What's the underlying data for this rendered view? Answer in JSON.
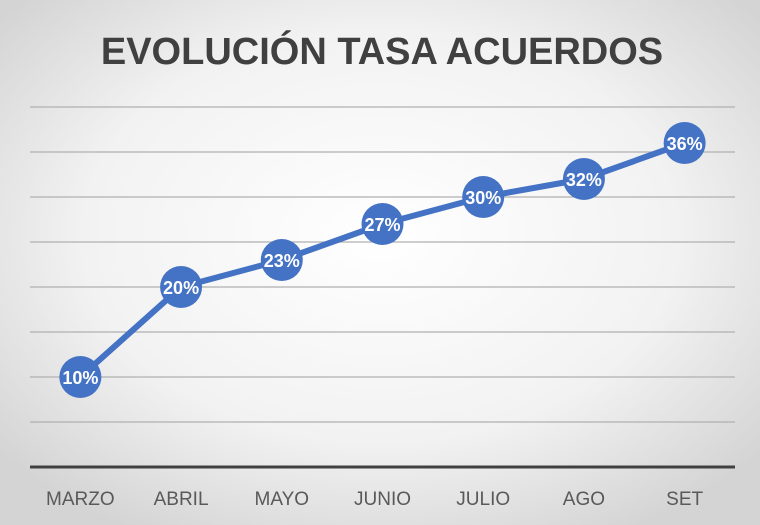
{
  "chart_data": {
    "type": "line",
    "title": "EVOLUCIÓN TASA ACUERDOS",
    "categories": [
      "MARZO",
      "ABRIL",
      "MAYO",
      "JUNIO",
      "JULIO",
      "AGO",
      "SET"
    ],
    "values": [
      10,
      20,
      23,
      27,
      30,
      32,
      36
    ],
    "data_labels": [
      "10%",
      "20%",
      "23%",
      "27%",
      "30%",
      "32%",
      "36%"
    ],
    "ylim": [
      0,
      40
    ],
    "y_gridline_step": 5,
    "grid": true,
    "y_tick_labels_shown": false,
    "legend": "none",
    "colors": {
      "series": "#4472C4",
      "title": "#404040",
      "axis": "#404040",
      "grid": "#B0B0B0",
      "tick_label": "#595959"
    }
  }
}
